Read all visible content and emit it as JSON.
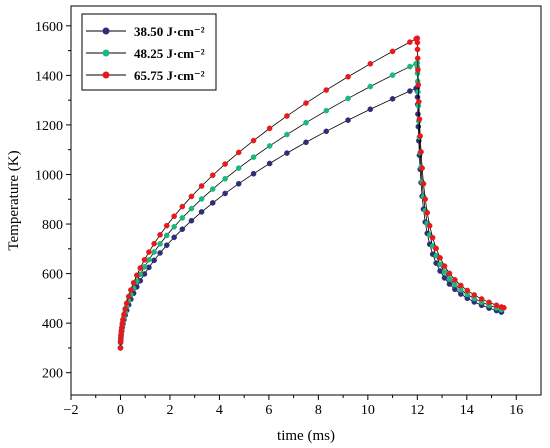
{
  "chart_data": {
    "type": "line",
    "title": "",
    "xlabel": "time (ms)",
    "ylabel": "Temperature (K)",
    "xlim": [
      -2,
      17
    ],
    "ylim": [
      110,
      1680
    ],
    "xticks": [
      -2,
      0,
      2,
      4,
      6,
      8,
      10,
      12,
      14,
      16
    ],
    "yticks": [
      200,
      400,
      600,
      800,
      1000,
      1200,
      1400,
      1600
    ],
    "grid": false,
    "legend_position": "top-left",
    "heating_end_ms": 12,
    "series": [
      {
        "name": "38.50 J·cm⁻²",
        "color": "#2e2e7a",
        "peak": 1350,
        "final": 445,
        "end_time": 15.4
      },
      {
        "name": "48.25 J·cm⁻²",
        "color": "#1ab87a",
        "peak": 1450,
        "final": 455,
        "end_time": 15.4
      },
      {
        "name": "65.75 J·cm⁻²",
        "color": "#e8191c",
        "peak": 1550,
        "final": 462,
        "end_time": 15.5
      }
    ],
    "start_temperature": 300
  }
}
